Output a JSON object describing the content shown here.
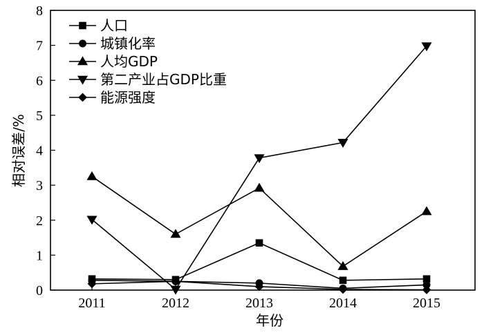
{
  "chart_data": {
    "type": "line",
    "xlabel": "年份",
    "ylabel": "相对误差/%",
    "categories": [
      "2011",
      "2012",
      "2013",
      "2014",
      "2015"
    ],
    "ylim": [
      0,
      8
    ],
    "yticks": [
      0,
      1,
      2,
      3,
      4,
      5,
      6,
      7,
      8
    ],
    "grid": false,
    "legend_position": "top-left",
    "series": [
      {
        "name": "人口",
        "marker": "square",
        "values": [
          0.32,
          0.3,
          1.35,
          0.28,
          0.32
        ]
      },
      {
        "name": "城镇化率",
        "marker": "circle",
        "values": [
          0.28,
          0.25,
          0.2,
          0.05,
          0.15
        ]
      },
      {
        "name": "人均GDP",
        "marker": "triangle-up",
        "values": [
          3.25,
          1.6,
          2.92,
          0.68,
          2.25
        ]
      },
      {
        "name": "第二产业占GDP比重",
        "marker": "triangle-down",
        "values": [
          2.02,
          0.02,
          3.78,
          4.22,
          6.98
        ]
      },
      {
        "name": "能源强度",
        "marker": "diamond",
        "values": [
          0.18,
          0.25,
          0.1,
          0.02,
          0.01
        ]
      }
    ]
  }
}
